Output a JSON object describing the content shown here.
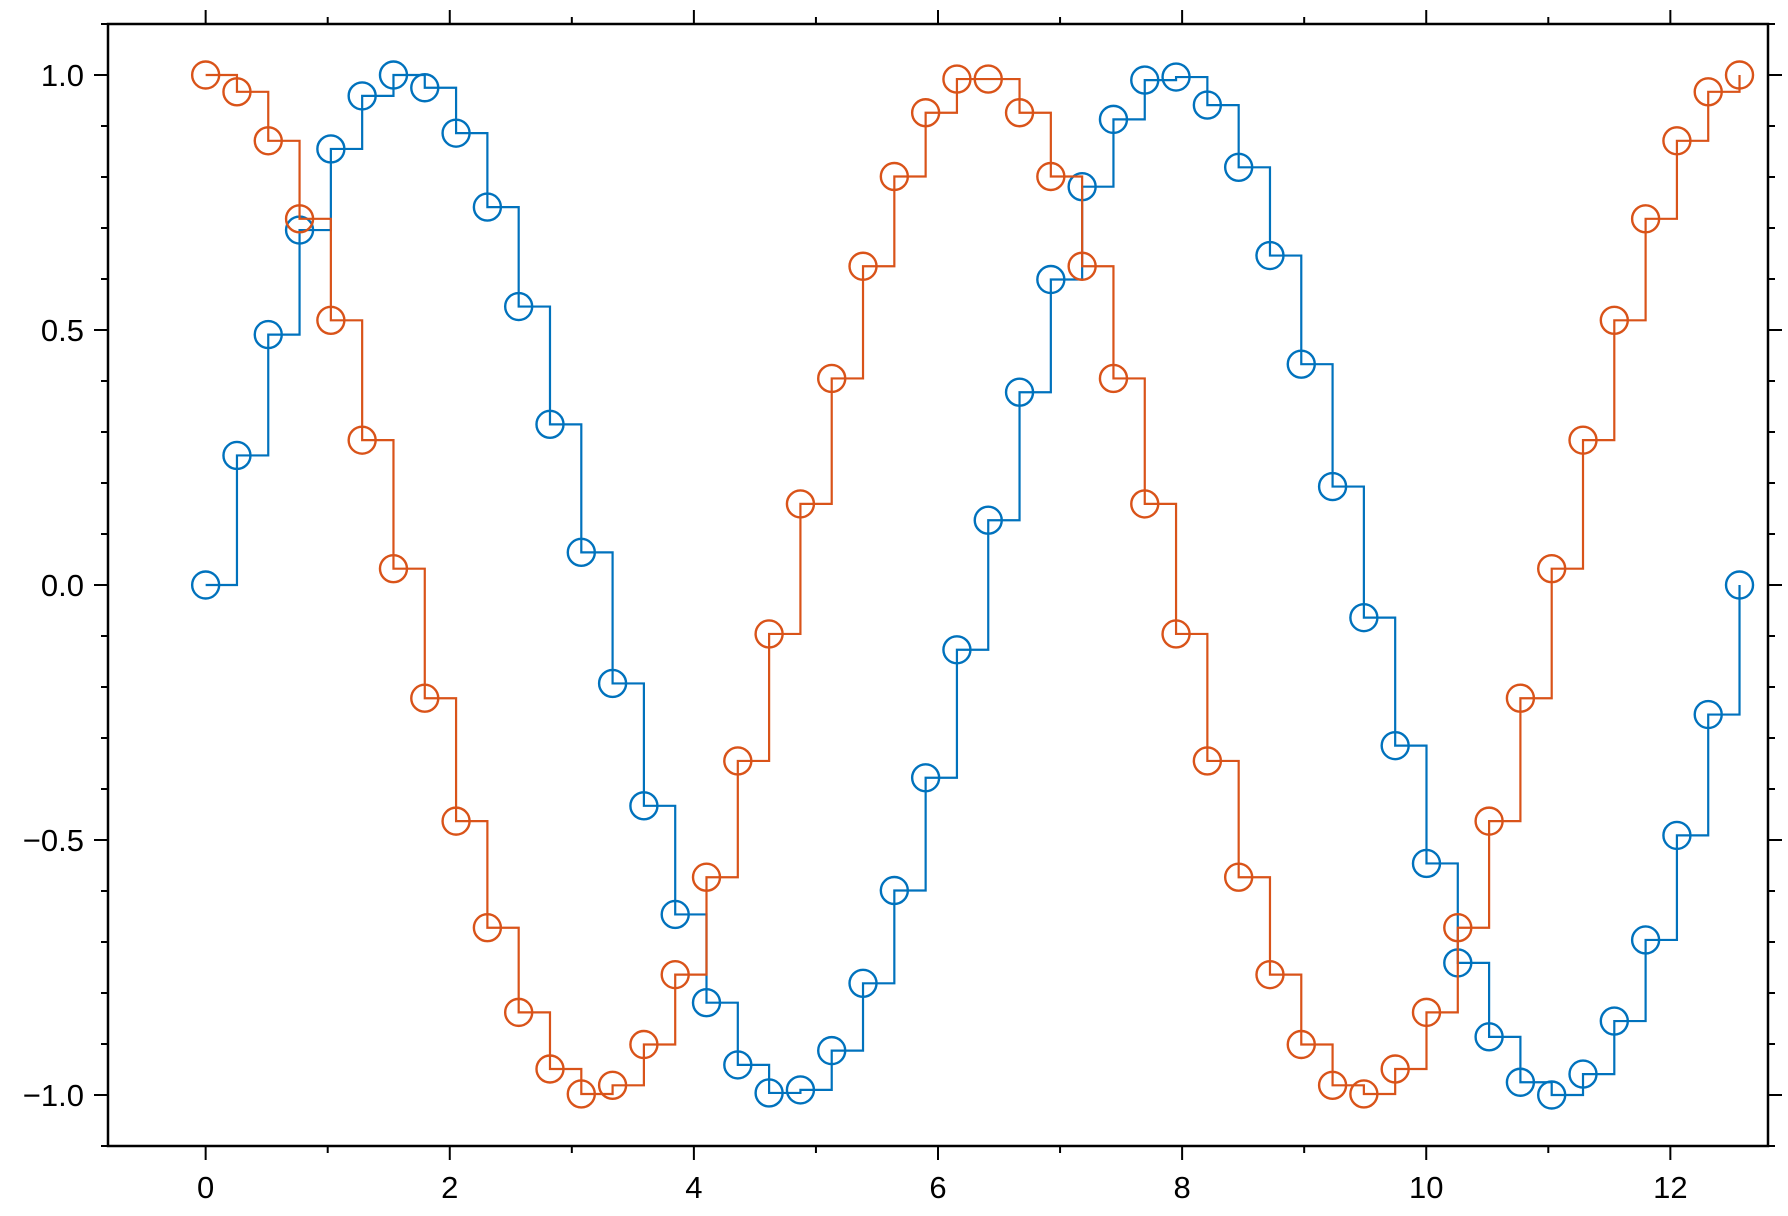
{
  "chart_data": {
    "type": "line",
    "style": "step-post with open circle markers",
    "title": "",
    "xlabel": "",
    "ylabel": "",
    "xlim": [
      -0.8,
      12.8
    ],
    "ylim": [
      -1.1,
      1.1
    ],
    "x_ticks": [
      0,
      2,
      4,
      6,
      8,
      10,
      12
    ],
    "x_tick_labels": [
      "0",
      "2",
      "4",
      "6",
      "8",
      "10",
      "12"
    ],
    "x_minor_step": 1,
    "y_ticks": [
      -1.0,
      -0.5,
      0.0,
      0.5,
      1.0
    ],
    "y_tick_labels": [
      "−1.0",
      "−0.5",
      "0.0",
      "0.5",
      "1.0"
    ],
    "y_minor_step": 0.1,
    "grid": false,
    "legend": "none",
    "x": [
      0.0,
      0.2565,
      0.5129,
      0.7694,
      1.0259,
      1.2823,
      1.5388,
      1.7952,
      2.0517,
      2.3082,
      2.5646,
      2.8211,
      3.0776,
      3.334,
      3.5905,
      3.847,
      4.1034,
      4.3599,
      4.6163,
      4.8728,
      5.1293,
      5.3857,
      5.6422,
      5.8987,
      6.1551,
      6.4116,
      6.668,
      6.9245,
      7.181,
      7.4374,
      7.6939,
      7.9504,
      8.2068,
      8.4633,
      8.7198,
      8.9762,
      9.2327,
      9.4891,
      9.7456,
      10.0021,
      10.2585,
      10.515,
      10.7715,
      11.0279,
      11.2844,
      11.5408,
      11.7973,
      12.0538,
      12.3102,
      12.5667
    ],
    "series": [
      {
        "color": "#0072bd",
        "values": [
          0.0,
          0.254,
          0.491,
          0.696,
          0.855,
          0.959,
          1.0,
          0.975,
          0.886,
          0.741,
          0.546,
          0.315,
          0.064,
          -0.193,
          -0.433,
          -0.646,
          -0.819,
          -0.941,
          -0.996,
          -0.99,
          -0.913,
          -0.781,
          -0.599,
          -0.378,
          -0.127,
          0.127,
          0.378,
          0.599,
          0.781,
          0.913,
          0.99,
          0.996,
          0.941,
          0.819,
          0.646,
          0.433,
          0.193,
          -0.064,
          -0.315,
          -0.546,
          -0.741,
          -0.886,
          -0.975,
          -1.0,
          -0.959,
          -0.855,
          -0.696,
          -0.491,
          -0.254,
          0.0
        ]
      },
      {
        "color": "#d95319",
        "values": [
          1.0,
          0.967,
          0.871,
          0.718,
          0.519,
          0.284,
          0.032,
          -0.222,
          -0.463,
          -0.672,
          -0.838,
          -0.949,
          -0.998,
          -0.981,
          -0.901,
          -0.764,
          -0.573,
          -0.345,
          -0.096,
          0.159,
          0.405,
          0.625,
          0.801,
          0.926,
          0.992,
          0.992,
          0.926,
          0.801,
          0.625,
          0.405,
          0.159,
          -0.096,
          -0.345,
          -0.573,
          -0.764,
          -0.901,
          -0.981,
          -0.998,
          -0.949,
          -0.838,
          -0.672,
          -0.463,
          -0.222,
          0.032,
          0.284,
          0.519,
          0.718,
          0.871,
          0.967,
          1.0
        ]
      }
    ]
  }
}
